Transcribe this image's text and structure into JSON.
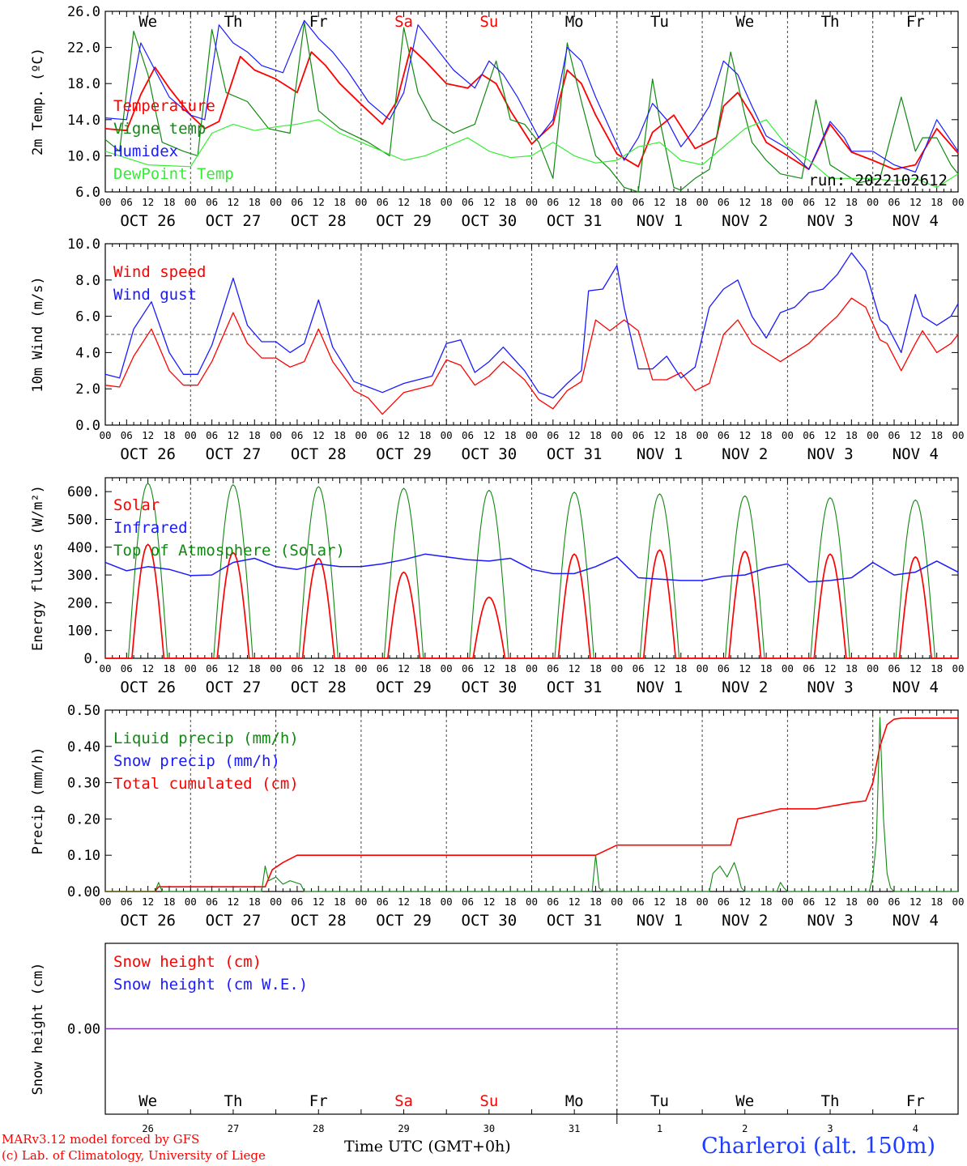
{
  "run_label": "run: 2022102612",
  "footer": {
    "model": "MARv3.12 model forced by GFS",
    "credit": "(c) Lab. of Climatology, University of Liege",
    "time_label": "Time UTC (GMT+0h)",
    "month_left": "OCT",
    "month_right": "NOV",
    "location": "Charleroi (alt. 150m)"
  },
  "colors": {
    "red": "#ff0000",
    "blue": "#1a1aff",
    "green": "#118811",
    "light_green": "#33ee33",
    "purple": "#7f3fbf",
    "weekend": "#ff0000"
  },
  "axis": {
    "hour_ticks": [
      "00",
      "06",
      "12",
      "18"
    ],
    "day_labels": [
      "OCT 26",
      "OCT 27",
      "OCT 28",
      "OCT 29",
      "OCT 30",
      "OCT 31",
      "NOV  1",
      "NOV  2",
      "NOV  3",
      "NOV  4"
    ],
    "weekdays": [
      "We",
      "Th",
      "Fr",
      "Sa",
      "Su",
      "Mo",
      "Tu",
      "We",
      "Th",
      "Fr"
    ],
    "weekend_days": [
      3,
      4
    ],
    "day_numbers": [
      "26",
      "27",
      "28",
      "29",
      "30",
      "31",
      "1",
      "2",
      "3",
      "4"
    ],
    "hours_start": 0,
    "hours_end": 240
  },
  "chart_data": [
    {
      "type": "line",
      "id": "temperature",
      "ylabel": "2m Temp. (ºC)",
      "ylim": [
        6,
        26
      ],
      "yticks": [
        "6.0",
        "10.0",
        "14.0",
        "18.0",
        "22.0",
        "26.0"
      ],
      "legend": [
        "Temperature",
        "Vigne temp",
        "Humidex",
        "DewPoint Temp"
      ],
      "series": [
        {
          "name": "Temperature",
          "color": "red",
          "x": [
            0,
            6,
            10,
            14,
            18,
            24,
            28,
            32,
            38,
            42,
            48,
            54,
            58,
            62,
            66,
            72,
            78,
            82,
            86,
            90,
            96,
            102,
            106,
            110,
            114,
            120,
            126,
            130,
            134,
            138,
            144,
            150,
            154,
            160,
            166,
            172,
            174,
            178,
            182,
            186,
            192,
            198,
            204,
            210,
            216,
            222,
            228,
            234,
            240
          ],
          "y": [
            13,
            12.8,
            16.8,
            19.8,
            17.5,
            14.5,
            13,
            13.8,
            21,
            19.5,
            18.5,
            17,
            21.5,
            20,
            18,
            15.7,
            13.5,
            16,
            22,
            20.5,
            18,
            17.5,
            19,
            18,
            15,
            11.3,
            13.5,
            19.5,
            18,
            14.5,
            10.2,
            8.8,
            12.6,
            14.5,
            10.8,
            12,
            15.5,
            17,
            14.5,
            11.5,
            10,
            8.5,
            13.5,
            10.4,
            9.5,
            8.5,
            9,
            13,
            10.3
          ]
        },
        {
          "name": "Vigne temp",
          "color": "green",
          "x": [
            0,
            4,
            8,
            12,
            16,
            22,
            26,
            30,
            34,
            40,
            46,
            52,
            56,
            60,
            66,
            74,
            80,
            84,
            88,
            92,
            98,
            104,
            110,
            114,
            118,
            122,
            126,
            130,
            134,
            138,
            142,
            146,
            150,
            154,
            156,
            160,
            162,
            166,
            170,
            172,
            176,
            180,
            182,
            186,
            190,
            196,
            200,
            204,
            208,
            212,
            218,
            224,
            228,
            230,
            234,
            238,
            240
          ],
          "y": [
            11.8,
            10.5,
            23.8,
            19,
            11.5,
            10.5,
            10,
            24,
            17,
            16,
            13,
            12.5,
            24.8,
            15,
            13,
            11.5,
            10,
            24.2,
            17,
            14,
            12.5,
            13.5,
            20.5,
            14,
            13.5,
            11.5,
            7.5,
            22.5,
            16,
            10,
            8.5,
            6.5,
            6,
            18.5,
            14,
            6.5,
            6.2,
            7.5,
            8.5,
            12,
            21.5,
            14.5,
            11.5,
            9.5,
            8,
            7.5,
            16.2,
            9,
            8,
            7,
            7.5,
            16.5,
            10.5,
            12,
            12,
            9,
            8
          ]
        },
        {
          "name": "Humidex",
          "color": "blue",
          "x": [
            0,
            6,
            10,
            14,
            18,
            24,
            28,
            32,
            36,
            40,
            44,
            50,
            56,
            60,
            64,
            68,
            74,
            80,
            84,
            88,
            92,
            98,
            104,
            108,
            112,
            116,
            122,
            126,
            130,
            134,
            138,
            146,
            150,
            154,
            158,
            162,
            166,
            170,
            174,
            178,
            182,
            186,
            192,
            198,
            204,
            208,
            210,
            216,
            222,
            228,
            234,
            240
          ],
          "y": [
            14.2,
            14,
            22.5,
            19.5,
            16.5,
            14.5,
            14,
            24.5,
            22.5,
            21.5,
            20,
            19.2,
            25,
            23,
            21.5,
            19.5,
            16,
            14,
            17,
            24.5,
            22.5,
            19.5,
            17.5,
            20.5,
            19,
            16.5,
            12,
            14,
            22,
            20.5,
            16.5,
            9.5,
            12,
            15.8,
            14,
            11,
            13,
            15.5,
            20.5,
            19,
            15.5,
            12.2,
            10.8,
            8.5,
            13.8,
            12,
            10.5,
            10.5,
            9,
            8.2,
            14,
            10.5
          ]
        },
        {
          "name": "DewPoint Temp",
          "color": "light_green",
          "x": [
            0,
            12,
            24,
            30,
            36,
            42,
            48,
            54,
            60,
            66,
            72,
            78,
            84,
            90,
            96,
            102,
            108,
            114,
            120,
            126,
            132,
            138,
            144,
            150,
            156,
            162,
            168,
            174,
            180,
            186,
            192,
            198,
            204,
            210,
            216,
            222,
            228,
            234,
            240
          ],
          "y": [
            10.5,
            9,
            8.8,
            12.5,
            13.5,
            12.8,
            13.2,
            13.5,
            14,
            12.5,
            11.5,
            10.5,
            9.5,
            10,
            11,
            12,
            10.5,
            9.8,
            10,
            11.5,
            10,
            9.2,
            9.5,
            11,
            11.5,
            9.5,
            9,
            11,
            13,
            14,
            11,
            9.5,
            7.5,
            7.5,
            7.5,
            7.2,
            7.5,
            6.5,
            8
          ]
        }
      ]
    },
    {
      "type": "line",
      "id": "wind",
      "ylabel": "10m Wind (m/s)",
      "ylim": [
        0,
        10
      ],
      "yticks": [
        "0.0",
        "2.0",
        "4.0",
        "6.0",
        "8.0",
        "10.0"
      ],
      "reference_line": 5,
      "legend": [
        "Wind speed",
        "Wind gust"
      ],
      "series": [
        {
          "name": "Wind speed",
          "color": "red",
          "x": [
            0,
            4,
            8,
            13,
            18,
            22,
            26,
            30,
            36,
            40,
            44,
            48,
            52,
            56,
            60,
            64,
            70,
            74,
            78,
            84,
            88,
            92,
            96,
            100,
            104,
            108,
            112,
            118,
            122,
            126,
            130,
            134,
            138,
            142,
            146,
            150,
            154,
            158,
            162,
            166,
            170,
            174,
            178,
            182,
            186,
            190,
            194,
            198,
            202,
            206,
            210,
            214,
            218,
            220,
            224,
            228,
            230,
            234,
            238,
            240
          ],
          "y": [
            2.2,
            2.1,
            3.8,
            5.3,
            3,
            2.2,
            2.2,
            3.5,
            6.2,
            4.5,
            3.7,
            3.7,
            3.2,
            3.5,
            5.3,
            3.5,
            1.9,
            1.5,
            0.6,
            1.8,
            2,
            2.2,
            3.6,
            3.3,
            2.2,
            2.7,
            3.5,
            2.5,
            1.4,
            0.9,
            1.9,
            2.4,
            5.8,
            5.2,
            5.8,
            5.2,
            2.5,
            2.5,
            2.9,
            1.9,
            2.3,
            5,
            5.8,
            4.5,
            4,
            3.5,
            4,
            4.5,
            5.3,
            6,
            7,
            6.5,
            4.7,
            4.5,
            3,
            4.5,
            5.2,
            4,
            4.5,
            5
          ]
        },
        {
          "name": "Wind gust",
          "color": "blue",
          "x": [
            0,
            4,
            8,
            13,
            18,
            22,
            26,
            30,
            36,
            40,
            44,
            48,
            52,
            56,
            60,
            64,
            70,
            74,
            78,
            84,
            88,
            92,
            96,
            100,
            104,
            108,
            112,
            118,
            122,
            126,
            130,
            134,
            136,
            140,
            144,
            146,
            150,
            154,
            158,
            162,
            166,
            170,
            174,
            178,
            182,
            186,
            190,
            194,
            198,
            202,
            206,
            210,
            214,
            218,
            220,
            224,
            228,
            230,
            234,
            238,
            240
          ],
          "y": [
            2.8,
            2.6,
            5.3,
            6.8,
            4,
            2.8,
            2.8,
            4.4,
            8.1,
            5.5,
            4.6,
            4.6,
            4,
            4.5,
            6.9,
            4.3,
            2.4,
            2.1,
            1.8,
            2.3,
            2.5,
            2.7,
            4.5,
            4.7,
            2.9,
            3.5,
            4.3,
            3,
            1.8,
            1.5,
            2.3,
            3,
            7.4,
            7.5,
            8.8,
            6.5,
            3.1,
            3.1,
            3.8,
            2.6,
            3.2,
            6.5,
            7.5,
            8,
            6,
            4.8,
            6.2,
            6.5,
            7.3,
            7.5,
            8.3,
            9.5,
            8.5,
            5.8,
            5.5,
            4,
            7.2,
            6,
            5.5,
            6,
            6.7
          ]
        }
      ]
    },
    {
      "type": "line",
      "id": "energy",
      "ylabel": "Energy fluxes (W/m²)",
      "ylim": [
        0,
        650
      ],
      "yticks": [
        "0.",
        "100.",
        "200.",
        "300.",
        "400.",
        "500.",
        "600."
      ],
      "legend": [
        "Solar",
        "Infrared",
        "Top of Atmosphere (Solar)"
      ],
      "solar_peaks": [
        410,
        380,
        360,
        310,
        220,
        375,
        390,
        385,
        375,
        365
      ],
      "toa_peaks": [
        630,
        625,
        618,
        612,
        605,
        598,
        592,
        585,
        578,
        570
      ],
      "infrared": {
        "name": "Infrared",
        "color": "blue",
        "x": [
          0,
          6,
          12,
          18,
          24,
          30,
          36,
          42,
          48,
          54,
          60,
          66,
          72,
          78,
          84,
          90,
          96,
          102,
          108,
          114,
          120,
          126,
          132,
          138,
          144,
          150,
          156,
          162,
          168,
          174,
          180,
          186,
          192,
          198,
          204,
          210,
          216,
          222,
          228,
          234,
          240
        ],
        "y": [
          345,
          315,
          330,
          320,
          298,
          300,
          345,
          360,
          330,
          320,
          340,
          330,
          330,
          340,
          355,
          375,
          365,
          355,
          350,
          360,
          320,
          305,
          305,
          330,
          365,
          290,
          285,
          280,
          280,
          295,
          300,
          325,
          340,
          275,
          280,
          290,
          345,
          300,
          310,
          350,
          310
        ]
      }
    },
    {
      "type": "line",
      "id": "precip",
      "ylabel": "Precip (mm/h)",
      "ylim": [
        0,
        0.5
      ],
      "yticks": [
        "0.00",
        "0.10",
        "0.20",
        "0.30",
        "0.40",
        "0.50"
      ],
      "legend": [
        "Liquid precip (mm/h)",
        "Snow precip (mm/h)",
        "Total cumulated (cm)"
      ],
      "series": [
        {
          "name": "Total cumulated (cm)",
          "color": "red",
          "x": [
            0,
            14,
            15,
            45,
            47,
            50,
            54,
            60,
            120,
            138,
            144,
            170,
            176,
            178,
            190,
            200,
            210,
            214,
            216,
            218,
            220,
            222,
            224,
            226,
            240
          ],
          "y": [
            0,
            0,
            0.013,
            0.013,
            0.06,
            0.08,
            0.1,
            0.1,
            0.1,
            0.1,
            0.128,
            0.128,
            0.128,
            0.2,
            0.228,
            0.228,
            0.245,
            0.25,
            0.3,
            0.4,
            0.46,
            0.475,
            0.478,
            0.478,
            0.478
          ]
        },
        {
          "name": "Liquid precip (mm/h)",
          "color": "green",
          "x": [
            0,
            14,
            15,
            16,
            44,
            45,
            46,
            48,
            50,
            52,
            55,
            56,
            137,
            138,
            139,
            140,
            170,
            171,
            173,
            175,
            177,
            178,
            179,
            180,
            189,
            190,
            191,
            192,
            215,
            216,
            217,
            218,
            219,
            220,
            221,
            222,
            240
          ],
          "y": [
            0,
            0,
            0.025,
            0,
            0,
            0.07,
            0.03,
            0.04,
            0.02,
            0.03,
            0.02,
            0,
            0,
            0.1,
            0.01,
            0,
            0,
            0.05,
            0.07,
            0.04,
            0.08,
            0.05,
            0.01,
            0,
            0,
            0.025,
            0.01,
            0,
            0,
            0.04,
            0.14,
            0.48,
            0.2,
            0.05,
            0.01,
            0,
            0
          ]
        }
      ]
    },
    {
      "type": "line",
      "id": "snow",
      "ylabel": "Snow height (cm)",
      "ylim": [
        -1,
        1
      ],
      "yticks": [
        "0.00"
      ],
      "legend": [
        "Snow height (cm)",
        "Snow height (cm W.E.)"
      ],
      "series": [
        {
          "name": "Snow height (cm)",
          "color": "purple",
          "x": [
            0,
            240
          ],
          "y": [
            0,
            0
          ]
        }
      ]
    }
  ]
}
